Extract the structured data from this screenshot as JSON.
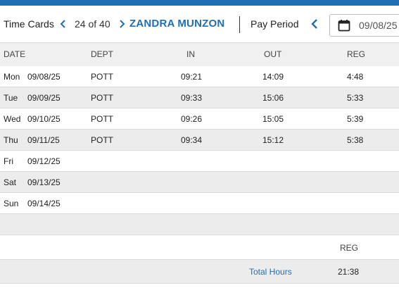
{
  "header": {
    "title": "Time Cards",
    "counter": "24 of 40",
    "employee_name": "ZANDRA MUNZON",
    "pay_period_label": "Pay Period",
    "pay_period_date": "09/08/25",
    "accent_color": "#1f6fb2"
  },
  "table": {
    "columns": [
      "DATE",
      "DEPT",
      "IN",
      "OUT",
      "REG"
    ],
    "rows": [
      {
        "day": "Mon",
        "date": "09/08/25",
        "dept": "POTT",
        "in": "09:21",
        "out": "14:09",
        "reg": "4:48"
      },
      {
        "day": "Tue",
        "date": "09/09/25",
        "dept": "POTT",
        "in": "09:33",
        "out": "15:06",
        "reg": "5:33"
      },
      {
        "day": "Wed",
        "date": "09/10/25",
        "dept": "POTT",
        "in": "09:26",
        "out": "15:05",
        "reg": "5:39"
      },
      {
        "day": "Thu",
        "date": "09/11/25",
        "dept": "POTT",
        "in": "09:34",
        "out": "15:12",
        "reg": "5:38"
      },
      {
        "day": "Fri",
        "date": "09/12/25",
        "dept": "",
        "in": "",
        "out": "",
        "reg": ""
      },
      {
        "day": "Sat",
        "date": "09/13/25",
        "dept": "",
        "in": "",
        "out": "",
        "reg": ""
      },
      {
        "day": "Sun",
        "date": "09/14/25",
        "dept": "",
        "in": "",
        "out": "",
        "reg": ""
      }
    ]
  },
  "summary": {
    "column_label": "REG",
    "total_label": "Total Hours",
    "total_value": "21:38"
  },
  "icons": {
    "prev": "chevron-left-icon",
    "next": "chevron-right-icon",
    "calendar": "calendar-icon"
  }
}
